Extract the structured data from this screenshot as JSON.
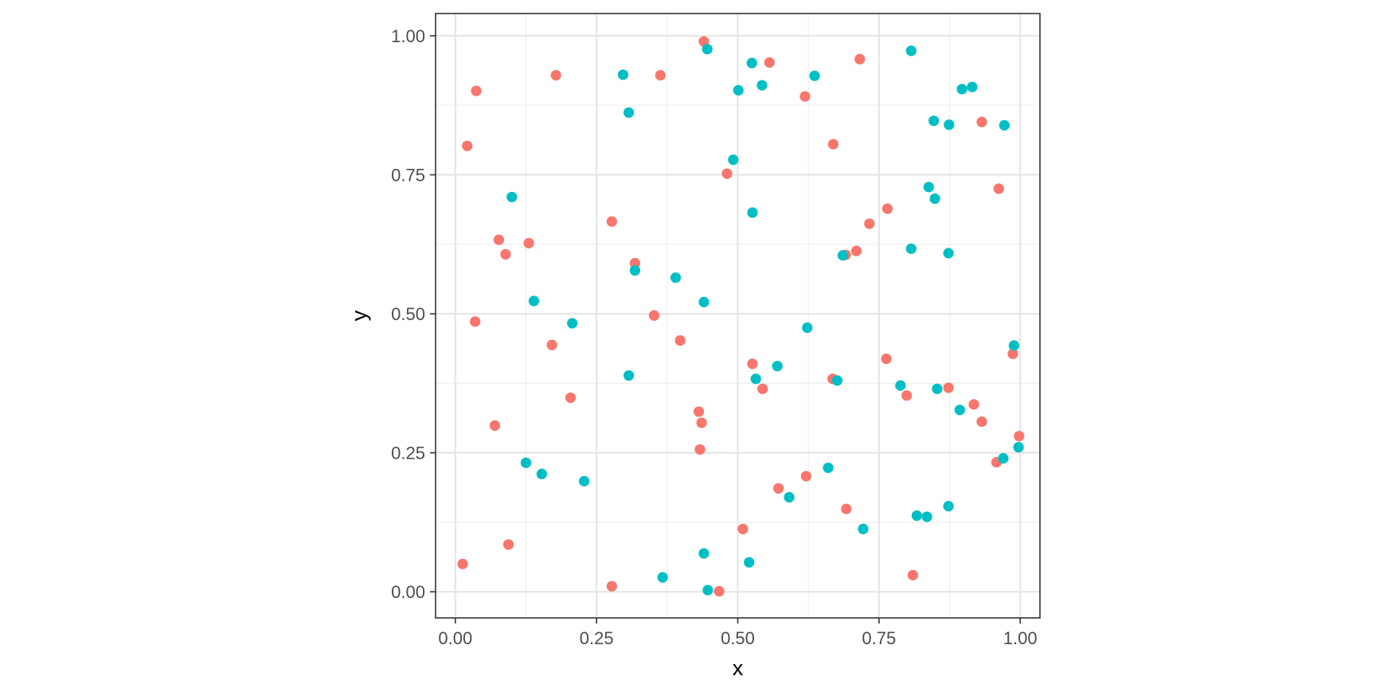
{
  "chart_data": {
    "type": "scatter",
    "xlabel": "x",
    "ylabel": "y",
    "xlim": [
      -0.035,
      1.035
    ],
    "ylim": [
      -0.047,
      1.04
    ],
    "x_ticks": [
      0,
      0.25,
      0.5,
      0.75,
      1
    ],
    "y_ticks": [
      0,
      0.25,
      0.5,
      0.75,
      1
    ],
    "x_tick_labels": [
      "0.00",
      "0.25",
      "0.50",
      "0.75",
      "1.00"
    ],
    "y_tick_labels": [
      "0.00",
      "0.25",
      "0.50",
      "0.75",
      "1.00"
    ],
    "grid": true,
    "legend": "none",
    "series": [
      {
        "color": "#F8766D",
        "points": [
          [
            0.44,
            0.99
          ],
          [
            0.556,
            0.952
          ],
          [
            0.716,
            0.958
          ],
          [
            0.178,
            0.929
          ],
          [
            0.363,
            0.929
          ],
          [
            0.037,
            0.901
          ],
          [
            0.619,
            0.891
          ],
          [
            0.932,
            0.845
          ],
          [
            0.021,
            0.802
          ],
          [
            0.669,
            0.805
          ],
          [
            0.481,
            0.752
          ],
          [
            0.962,
            0.725
          ],
          [
            0.277,
            0.666
          ],
          [
            0.765,
            0.689
          ],
          [
            0.733,
            0.662
          ],
          [
            0.077,
            0.633
          ],
          [
            0.13,
            0.627
          ],
          [
            0.089,
            0.607
          ],
          [
            0.318,
            0.591
          ],
          [
            0.691,
            0.606
          ],
          [
            0.71,
            0.613
          ],
          [
            0.352,
            0.497
          ],
          [
            0.035,
            0.486
          ],
          [
            0.171,
            0.444
          ],
          [
            0.398,
            0.452
          ],
          [
            0.763,
            0.419
          ],
          [
            0.987,
            0.428
          ],
          [
            0.526,
            0.41
          ],
          [
            0.544,
            0.365
          ],
          [
            0.668,
            0.383
          ],
          [
            0.204,
            0.349
          ],
          [
            0.799,
            0.353
          ],
          [
            0.873,
            0.367
          ],
          [
            0.918,
            0.337
          ],
          [
            0.431,
            0.324
          ],
          [
            0.436,
            0.304
          ],
          [
            0.07,
            0.299
          ],
          [
            0.932,
            0.306
          ],
          [
            0.998,
            0.28
          ],
          [
            0.433,
            0.256
          ],
          [
            0.958,
            0.233
          ],
          [
            0.572,
            0.186
          ],
          [
            0.621,
            0.208
          ],
          [
            0.692,
            0.149
          ],
          [
            0.509,
            0.113
          ],
          [
            0.094,
            0.085
          ],
          [
            0.013,
            0.05
          ],
          [
            0.81,
            0.03
          ],
          [
            0.277,
            0.01
          ],
          [
            0.467,
            0.001
          ]
        ]
      },
      {
        "color": "#00BFC4",
        "points": [
          [
            0.446,
            0.976
          ],
          [
            0.807,
            0.973
          ],
          [
            0.297,
            0.93
          ],
          [
            0.525,
            0.951
          ],
          [
            0.636,
            0.928
          ],
          [
            0.543,
            0.911
          ],
          [
            0.501,
            0.902
          ],
          [
            0.897,
            0.904
          ],
          [
            0.915,
            0.908
          ],
          [
            0.307,
            0.862
          ],
          [
            0.847,
            0.847
          ],
          [
            0.874,
            0.84
          ],
          [
            0.972,
            0.839
          ],
          [
            0.492,
            0.777
          ],
          [
            0.838,
            0.728
          ],
          [
            0.1,
            0.71
          ],
          [
            0.849,
            0.707
          ],
          [
            0.526,
            0.682
          ],
          [
            0.807,
            0.617
          ],
          [
            0.873,
            0.609
          ],
          [
            0.686,
            0.605
          ],
          [
            0.318,
            0.578
          ],
          [
            0.39,
            0.565
          ],
          [
            0.139,
            0.523
          ],
          [
            0.44,
            0.521
          ],
          [
            0.207,
            0.483
          ],
          [
            0.623,
            0.475
          ],
          [
            0.989,
            0.443
          ],
          [
            0.57,
            0.406
          ],
          [
            0.307,
            0.389
          ],
          [
            0.532,
            0.383
          ],
          [
            0.676,
            0.38
          ],
          [
            0.788,
            0.371
          ],
          [
            0.853,
            0.365
          ],
          [
            0.893,
            0.327
          ],
          [
            0.997,
            0.26
          ],
          [
            0.97,
            0.24
          ],
          [
            0.125,
            0.232
          ],
          [
            0.66,
            0.223
          ],
          [
            0.153,
            0.212
          ],
          [
            0.228,
            0.199
          ],
          [
            0.591,
            0.17
          ],
          [
            0.873,
            0.154
          ],
          [
            0.817,
            0.137
          ],
          [
            0.835,
            0.135
          ],
          [
            0.722,
            0.113
          ],
          [
            0.44,
            0.069
          ],
          [
            0.52,
            0.053
          ],
          [
            0.367,
            0.026
          ],
          [
            0.447,
            0.003
          ]
        ]
      }
    ]
  }
}
